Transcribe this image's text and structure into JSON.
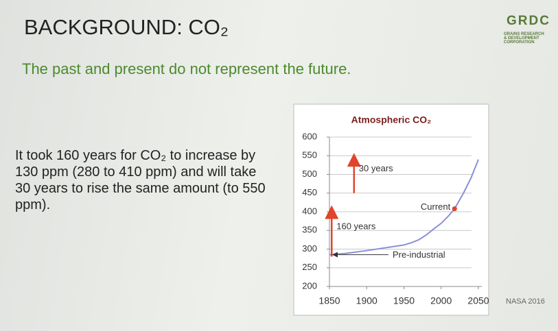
{
  "slide": {
    "title": "BACKGROUND: CO₂",
    "subtitle": "The past and present do not represent the future.",
    "body": "It took 160 years for CO₂ to increase by 130 ppm (280 to 410 ppm) and will take 30 years to rise the same amount (to 550 ppm).",
    "source": "NASA 2016",
    "logo": {
      "name": "GRDC",
      "lines": [
        "GRAINS RESEARCH",
        "& DEVELOPMENT",
        "CORPORATION"
      ]
    }
  },
  "chart_data": {
    "type": "line",
    "title": "Atmospheric CO₂",
    "x": [
      1850,
      1870,
      1900,
      1930,
      1950,
      1960,
      1970,
      1980,
      1990,
      2000,
      2010,
      2018,
      2030,
      2040,
      2050
    ],
    "values": [
      285,
      288,
      296,
      305,
      311,
      317,
      325,
      338,
      354,
      369,
      389,
      408,
      450,
      490,
      540
    ],
    "color": "#8b8fd8",
    "xlim": [
      1850,
      2050
    ],
    "xticks": [
      1850,
      1900,
      1950,
      2000,
      2050
    ],
    "ylim": [
      200,
      600
    ],
    "yticks": [
      200,
      250,
      300,
      350,
      400,
      450,
      500,
      550,
      600
    ],
    "grid": true,
    "annotations": [
      {
        "text": "Current",
        "x": 2018,
        "y": 408
      },
      {
        "text": "Pre-industrial",
        "x": 1850,
        "y": 285
      },
      {
        "text": "160 years",
        "x": 1853,
        "from": 280,
        "to": 410
      },
      {
        "text": "30 years",
        "x": 1883,
        "from": 450,
        "to": 550
      }
    ]
  }
}
